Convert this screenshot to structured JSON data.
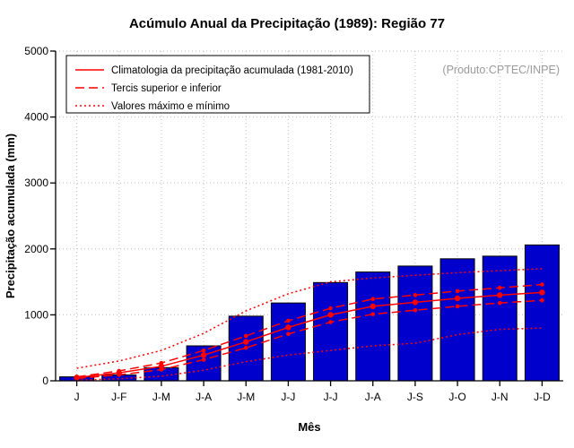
{
  "annotation": "(Produto:CPTEC/INPE)",
  "chart_data": {
    "type": "bar",
    "title": "Acúmulo Anual da Precipitação (1989): Região 77",
    "xlabel": "Mês",
    "ylabel": "Precipitação acumulada (mm)",
    "ylim": [
      0,
      5000
    ],
    "yticks": [
      0,
      1000,
      2000,
      3000,
      4000,
      5000
    ],
    "categories": [
      "J",
      "J-F",
      "J-M",
      "J-A",
      "J-M",
      "J-J",
      "J-J",
      "J-A",
      "J-S",
      "J-O",
      "J-N",
      "J-D"
    ],
    "bar_values": [
      60,
      90,
      200,
      530,
      980,
      1180,
      1490,
      1650,
      1740,
      1850,
      1890,
      2060
    ],
    "bar_color": "#0000CD",
    "line_color": "#FF0000",
    "grid_color": "#BFBFBF",
    "annotation_color": "#9B9B9B",
    "series": [
      {
        "name": "Máximo",
        "style": "dotted",
        "marker": false,
        "values": [
          190,
          300,
          460,
          720,
          1060,
          1320,
          1500,
          1560,
          1600,
          1640,
          1670,
          1700
        ]
      },
      {
        "name": "Mínimo",
        "style": "dotted",
        "marker": false,
        "values": [
          10,
          30,
          70,
          160,
          290,
          390,
          460,
          530,
          570,
          700,
          780,
          800
        ]
      },
      {
        "name": "Tercil superior",
        "style": "dashed",
        "marker": true,
        "values": [
          60,
          150,
          270,
          460,
          680,
          910,
          1100,
          1240,
          1300,
          1360,
          1410,
          1460
        ]
      },
      {
        "name": "Tercil inferior",
        "style": "dashed",
        "marker": true,
        "values": [
          35,
          90,
          170,
          320,
          500,
          710,
          890,
          1010,
          1070,
          1130,
          1180,
          1220
        ]
      },
      {
        "name": "Climatologia da precipitação acumulada (1981-2010)",
        "style": "solid",
        "marker": true,
        "values": [
          50,
          120,
          220,
          390,
          590,
          810,
          1000,
          1130,
          1190,
          1250,
          1300,
          1340
        ]
      }
    ],
    "legend": [
      {
        "label": "Climatologia da precipitação acumulada (1981-2010)",
        "style": "solid"
      },
      {
        "label": "Tercis superior e inferior",
        "style": "dashed"
      },
      {
        "label": "Valores máximo e mínimo",
        "style": "dotted"
      }
    ],
    "legend_position": "top-left",
    "grid": true
  }
}
